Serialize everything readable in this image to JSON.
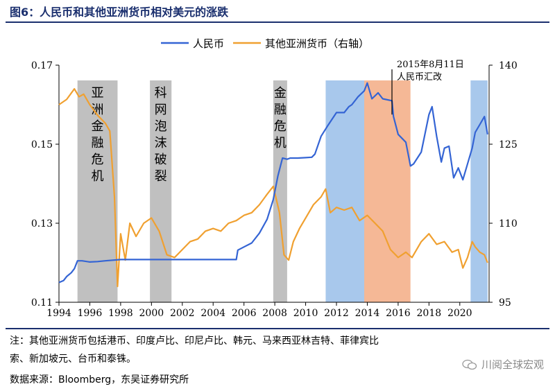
{
  "header": {
    "title": "图6：人民币和其他亚洲货币相对美元的涨跌"
  },
  "footer": {
    "note_line1": "注：其他亚洲货币包括港币、印度卢比、印尼卢比、韩元、马来西亚林吉特、菲律宾比",
    "note_line2": "索、新加坡元、台币和泰铢。",
    "source": "数据来源：Bloomberg，东吴证券研究所"
  },
  "watermark": {
    "text": "川阅全球宏观",
    "icon": "wechat-icon"
  },
  "chart_data": {
    "type": "line",
    "xlim": [
      1994,
      2021.9
    ],
    "x_ticks": [
      1994,
      1996,
      1998,
      2000,
      2002,
      2004,
      2006,
      2008,
      2010,
      2012,
      2014,
      2016,
      2018,
      2020
    ],
    "y_left": {
      "lim": [
        0.11,
        0.17
      ],
      "ticks": [
        0.11,
        0.13,
        0.15,
        0.17
      ]
    },
    "y_right": {
      "lim": [
        95,
        140
      ],
      "ticks": [
        95,
        110,
        125,
        140
      ]
    },
    "grid": false,
    "legend": {
      "position": "top",
      "entries": [
        "人民币",
        "其他亚洲货币（右轴）"
      ]
    },
    "colors": {
      "series1": "#3464d4",
      "series2": "#f0a030",
      "gray": "#c0c0c0",
      "blue": "#a8c8ec",
      "orange": "#f5b896"
    },
    "shaded_regions": [
      {
        "x0": 1995.2,
        "x1": 1997.8,
        "color": "gray",
        "label": "亚洲金融危机"
      },
      {
        "x0": 1999.9,
        "x1": 2001.3,
        "color": "gray",
        "label": "科网泡沫破裂"
      },
      {
        "x0": 2007.9,
        "x1": 2008.8,
        "color": "gray",
        "label": "金融危机"
      },
      {
        "x0": 2011.3,
        "x1": 2013.8,
        "color": "blue",
        "label": ""
      },
      {
        "x0": 2013.8,
        "x1": 2016.8,
        "color": "orange",
        "label": ""
      },
      {
        "x0": 2020.7,
        "x1": 2021.8,
        "color": "blue",
        "label": ""
      }
    ],
    "annotation": {
      "line1": "2015年8月11日",
      "line2": "人民币汇改",
      "x": 2015.6,
      "y": 0.1575
    },
    "series": [
      {
        "name": "人民币",
        "axis": "left",
        "points": [
          [
            1994.0,
            0.115
          ],
          [
            1994.3,
            0.1155
          ],
          [
            1994.5,
            0.1165
          ],
          [
            1994.8,
            0.1175
          ],
          [
            1995.0,
            0.1185
          ],
          [
            1995.2,
            0.1205
          ],
          [
            1995.5,
            0.1205
          ],
          [
            1996.0,
            0.1202
          ],
          [
            1996.5,
            0.1203
          ],
          [
            1997.0,
            0.1205
          ],
          [
            1998.0,
            0.1208
          ],
          [
            2005.5,
            0.1208
          ],
          [
            2005.6,
            0.1232
          ],
          [
            2006.0,
            0.124
          ],
          [
            2006.5,
            0.125
          ],
          [
            2007.0,
            0.1275
          ],
          [
            2007.5,
            0.131
          ],
          [
            2007.9,
            0.136
          ],
          [
            2008.2,
            0.142
          ],
          [
            2008.5,
            0.1465
          ],
          [
            2008.8,
            0.1462
          ],
          [
            2009.0,
            0.1465
          ],
          [
            2009.5,
            0.1465
          ],
          [
            2010.0,
            0.1466
          ],
          [
            2010.4,
            0.1467
          ],
          [
            2010.6,
            0.1475
          ],
          [
            2011.0,
            0.152
          ],
          [
            2011.4,
            0.1545
          ],
          [
            2012.0,
            0.158
          ],
          [
            2012.5,
            0.158
          ],
          [
            2012.8,
            0.1595
          ],
          [
            2013.0,
            0.16
          ],
          [
            2013.4,
            0.162
          ],
          [
            2013.8,
            0.1635
          ],
          [
            2014.0,
            0.1655
          ],
          [
            2014.3,
            0.1615
          ],
          [
            2014.7,
            0.163
          ],
          [
            2015.0,
            0.1615
          ],
          [
            2015.6,
            0.161
          ],
          [
            2015.7,
            0.157
          ],
          [
            2016.0,
            0.1525
          ],
          [
            2016.5,
            0.1505
          ],
          [
            2016.8,
            0.1445
          ],
          [
            2017.0,
            0.145
          ],
          [
            2017.5,
            0.148
          ],
          [
            2018.0,
            0.1575
          ],
          [
            2018.2,
            0.1595
          ],
          [
            2018.5,
            0.152
          ],
          [
            2018.8,
            0.1455
          ],
          [
            2019.0,
            0.149
          ],
          [
            2019.3,
            0.1495
          ],
          [
            2019.6,
            0.1415
          ],
          [
            2019.9,
            0.144
          ],
          [
            2020.2,
            0.141
          ],
          [
            2020.5,
            0.145
          ],
          [
            2020.8,
            0.149
          ],
          [
            2021.0,
            0.153
          ],
          [
            2021.3,
            0.155
          ],
          [
            2021.6,
            0.157
          ],
          [
            2021.8,
            0.1525
          ]
        ]
      },
      {
        "name": "其他亚洲货币（右轴）",
        "axis": "right",
        "points": [
          [
            1994.0,
            132.5
          ],
          [
            1994.5,
            133.5
          ],
          [
            1995.0,
            135.5
          ],
          [
            1995.3,
            134.0
          ],
          [
            1995.6,
            134.5
          ],
          [
            1996.0,
            132.5
          ],
          [
            1996.5,
            130.5
          ],
          [
            1997.0,
            129.0
          ],
          [
            1997.3,
            127.5
          ],
          [
            1997.6,
            115.0
          ],
          [
            1997.8,
            98.0
          ],
          [
            1998.0,
            108.0
          ],
          [
            1998.3,
            103.0
          ],
          [
            1998.6,
            110.0
          ],
          [
            1999.0,
            107.5
          ],
          [
            1999.5,
            110.0
          ],
          [
            2000.0,
            111.0
          ],
          [
            2000.5,
            108.5
          ],
          [
            2001.0,
            104.0
          ],
          [
            2001.5,
            103.5
          ],
          [
            2002.0,
            105.0
          ],
          [
            2002.5,
            106.5
          ],
          [
            2003.0,
            107.0
          ],
          [
            2003.5,
            108.5
          ],
          [
            2004.0,
            109.0
          ],
          [
            2004.5,
            108.5
          ],
          [
            2005.0,
            110.0
          ],
          [
            2005.5,
            110.5
          ],
          [
            2006.0,
            111.5
          ],
          [
            2006.5,
            112.0
          ],
          [
            2007.0,
            113.5
          ],
          [
            2007.5,
            115.5
          ],
          [
            2007.9,
            117.0
          ],
          [
            2008.3,
            112.0
          ],
          [
            2008.6,
            104.0
          ],
          [
            2008.9,
            103.0
          ],
          [
            2009.2,
            106.5
          ],
          [
            2009.6,
            109.0
          ],
          [
            2010.0,
            111.0
          ],
          [
            2010.5,
            113.5
          ],
          [
            2011.0,
            115.0
          ],
          [
            2011.3,
            116.5
          ],
          [
            2011.6,
            112.0
          ],
          [
            2012.0,
            113.0
          ],
          [
            2012.5,
            112.5
          ],
          [
            2013.0,
            113.0
          ],
          [
            2013.5,
            110.5
          ],
          [
            2014.0,
            111.5
          ],
          [
            2014.5,
            110.0
          ],
          [
            2015.0,
            108.5
          ],
          [
            2015.5,
            105.0
          ],
          [
            2016.0,
            103.5
          ],
          [
            2016.5,
            104.5
          ],
          [
            2016.9,
            103.5
          ],
          [
            2017.5,
            106.5
          ],
          [
            2018.0,
            108.0
          ],
          [
            2018.5,
            106.0
          ],
          [
            2019.0,
            106.5
          ],
          [
            2019.5,
            104.5
          ],
          [
            2019.9,
            105.0
          ],
          [
            2020.2,
            101.5
          ],
          [
            2020.5,
            103.5
          ],
          [
            2020.8,
            106.5
          ],
          [
            2021.0,
            105.5
          ],
          [
            2021.3,
            104.5
          ],
          [
            2021.6,
            104.0
          ],
          [
            2021.8,
            102.5
          ]
        ]
      }
    ]
  }
}
